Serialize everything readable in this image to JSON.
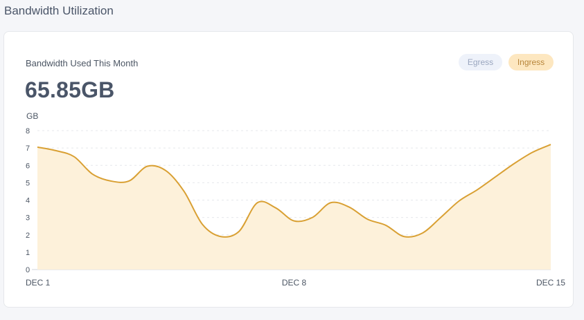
{
  "page": {
    "title": "Bandwidth Utilization"
  },
  "card": {
    "label": "Bandwidth Used This Month",
    "total": "65.85GB",
    "toggles": [
      {
        "label": "Egress",
        "active": false
      },
      {
        "label": "Ingress",
        "active": true
      }
    ]
  },
  "colors": {
    "line": "#d9a033",
    "fill": "#fdf1da",
    "grid": "#e5e7eb",
    "axis_text": "#4b5563"
  },
  "chart_data": {
    "type": "area",
    "unit_label": "GB",
    "ylim": [
      0,
      8
    ],
    "yticks": [
      0,
      1,
      2,
      3,
      4,
      5,
      6,
      7,
      8
    ],
    "xlabels": [
      "DEC 1",
      "DEC 8",
      "DEC 15"
    ],
    "grid": true,
    "series": [
      {
        "name": "Ingress",
        "x": [
          0,
          0.5,
          1,
          1.5,
          2,
          2.5,
          3,
          3.5,
          4,
          4.5,
          5,
          5.5,
          6,
          6.5,
          7,
          7.5,
          8,
          8.5,
          9,
          9.5,
          10,
          10.5,
          11,
          11.5,
          12,
          12.5,
          13,
          13.5,
          14
        ],
        "values": [
          7.05,
          6.85,
          6.5,
          5.5,
          5.1,
          5.1,
          5.95,
          5.7,
          4.5,
          2.6,
          1.9,
          2.2,
          3.85,
          3.55,
          2.8,
          3.0,
          3.85,
          3.6,
          2.9,
          2.55,
          1.9,
          2.1,
          3.0,
          3.95,
          4.6,
          5.35,
          6.1,
          6.75,
          7.2
        ]
      }
    ]
  }
}
